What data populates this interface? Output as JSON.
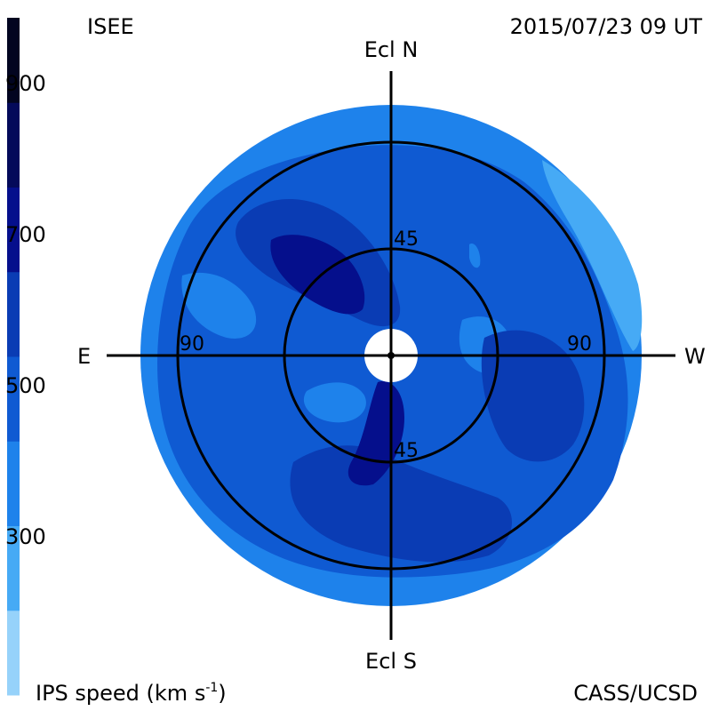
{
  "header": {
    "source": "ISEE",
    "timestamp": "2015/07/23 09 UT"
  },
  "footer": {
    "colorbar_title": "IPS speed (km s",
    "colorbar_title_exponent": "-1",
    "colorbar_title_close": ")",
    "credit": "CASS/UCSD"
  },
  "map": {
    "directions": {
      "north": "Ecl N",
      "south": "Ecl S",
      "east": "E",
      "west": "W"
    },
    "ring_labels": {
      "inner_north": "45",
      "inner_south": "45",
      "outer_east": "90",
      "outer_west": "90"
    }
  },
  "colorbar": {
    "tick_labels": [
      "300",
      "500",
      "700",
      "900"
    ],
    "colors": [
      "#96d2fa",
      "#46aaf5",
      "#1e82eb",
      "#0f5ad2",
      "#0a3cb4",
      "#050f8c",
      "#040a5a",
      "#020520"
    ]
  },
  "palette": {
    "disk_outer": "#1e82eb",
    "mid": "#0f5ad2",
    "high": "#0a3cb4",
    "highest": "#050f8c",
    "low": "#46aaf5"
  }
}
